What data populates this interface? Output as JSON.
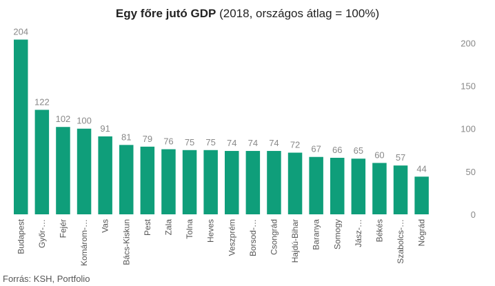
{
  "chart_data": {
    "type": "bar",
    "title": "Egy főre jutó GDP",
    "subtitle": "(2018, országos átlag = 100%)",
    "categories": [
      "Budapest",
      "Győr-…",
      "Fejér",
      "Komárom-…",
      "Vas",
      "Bács-Kiskun",
      "Pest",
      "Zala",
      "Tolna",
      "Heves",
      "Veszprém",
      "Borsod-…",
      "Csongrád",
      "Hajdú-Bihar",
      "Baranya",
      "Somogy",
      "Jász-…",
      "Békés",
      "Szabolcs-…",
      "Nógrád"
    ],
    "values": [
      204,
      122,
      102,
      100,
      91,
      81,
      79,
      76,
      75,
      75,
      74,
      74,
      74,
      72,
      67,
      66,
      65,
      60,
      57,
      44
    ],
    "value_labels": [
      "204",
      "122",
      "102",
      "100",
      "91",
      "81",
      "79",
      "76",
      "75",
      "75",
      "74",
      "74",
      "74",
      "72",
      "67",
      "66",
      "65",
      "60",
      "57",
      "44"
    ],
    "yticks": [
      "0",
      "50",
      "100",
      "150",
      "200"
    ],
    "ylim": [
      0,
      210
    ],
    "y_axis_side": "right",
    "grid": false,
    "bar_color": "#0f9e7a"
  },
  "source": "Forrás: KSH, Portfolio"
}
